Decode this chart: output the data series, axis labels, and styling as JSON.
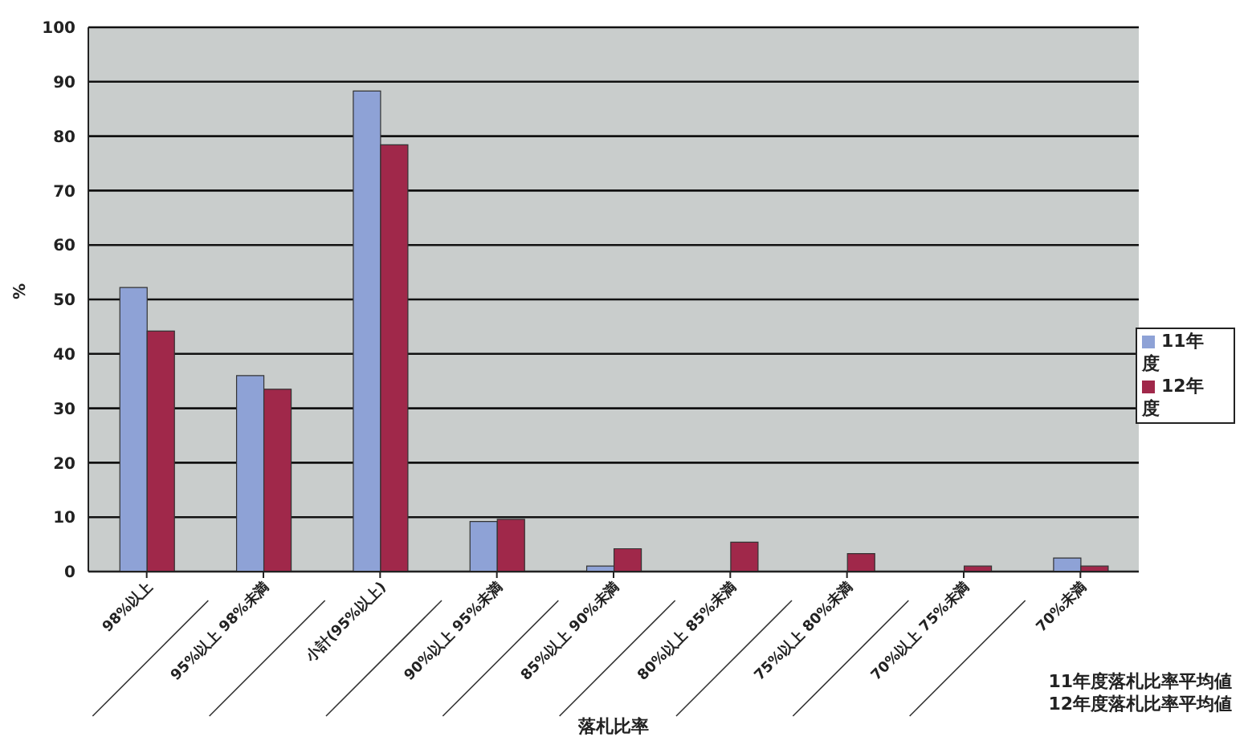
{
  "chart_data": {
    "type": "bar",
    "xlabel": "落札比率",
    "ylabel": "%",
    "categories": [
      "98%以上",
      "95%以上 98%未満",
      "小計(95%以上)",
      "90%以上 95%未満",
      "85%以上 90%未満",
      "80%以上 85%未満",
      "75%以上 80%未満",
      "70%以上 75%未満",
      "70%未満"
    ],
    "series": [
      {
        "name": "11年度",
        "color": "#8ea2d6",
        "values": [
          52.2,
          36,
          88.3,
          9.2,
          1,
          0,
          0,
          0,
          2.5
        ]
      },
      {
        "name": "12年度",
        "color": "#a0284a",
        "values": [
          44.2,
          33.5,
          78.4,
          9.6,
          4.2,
          5.4,
          3.3,
          1,
          1
        ]
      }
    ],
    "ylim": [
      0,
      100
    ],
    "yticks": [
      0,
      10,
      20,
      30,
      40,
      50,
      60,
      70,
      80,
      90,
      100
    ],
    "grid": "y",
    "legend": "right",
    "annotations": [
      "11年度落札比率平均値",
      "12年度落札比率平均値"
    ]
  }
}
